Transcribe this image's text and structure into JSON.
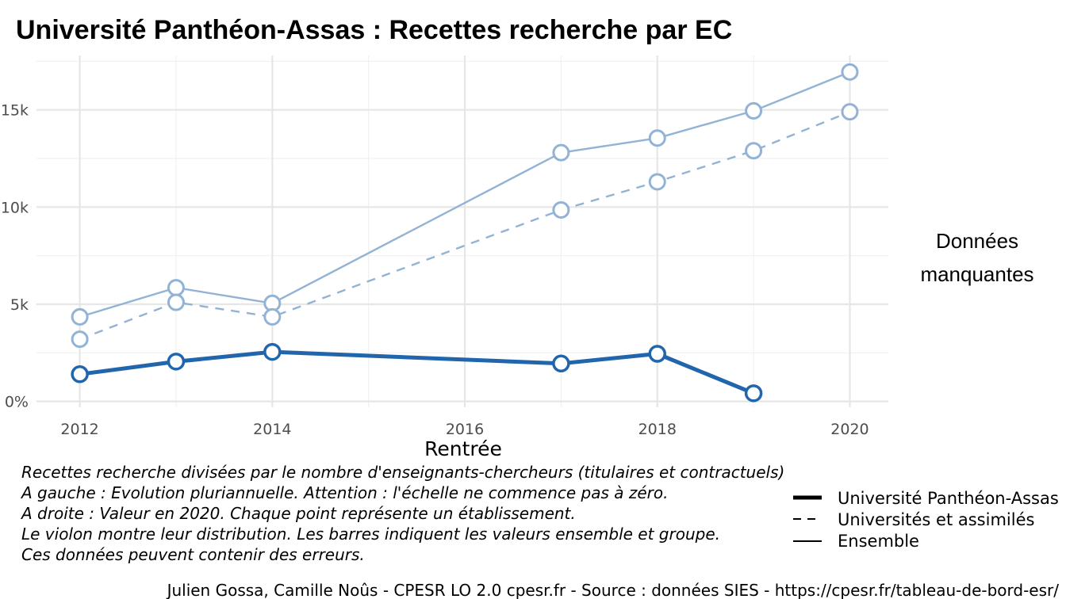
{
  "chart_data": {
    "type": "line",
    "title": "Université Panthéon-Assas  :  Recettes recherche par EC",
    "xlabel": "Rentrée",
    "ylabel": "",
    "xlim": [
      2011.55,
      2020.4
    ],
    "ylim": [
      -300,
      17800
    ],
    "x_ticks": [
      2012,
      2014,
      2016,
      2018,
      2020
    ],
    "x_tick_labels": [
      "2012",
      "2014",
      "2016",
      "2018",
      "2020"
    ],
    "y_ticks": [
      0,
      5000,
      10000,
      15000
    ],
    "y_tick_labels": [
      "0%",
      "5k",
      "10k",
      "15k"
    ],
    "x_minor": [
      2013,
      2015,
      2017,
      2019
    ],
    "y_minor": [
      2500,
      7500,
      12500,
      17500
    ],
    "grid": true,
    "legend_position": "bottom-right",
    "series": [
      {
        "name": "Université Panthéon-Assas",
        "style": "thick-solid",
        "color": "#2166ac",
        "x": [
          2012,
          2013,
          2014,
          2017,
          2018,
          2019
        ],
        "values": [
          1400,
          2050,
          2550,
          1950,
          2450,
          420
        ]
      },
      {
        "name": "Universités et assimilés",
        "style": "dashed",
        "color": "#92b3d5",
        "x": [
          2012,
          2013,
          2014,
          2017,
          2018,
          2019,
          2020
        ],
        "values": [
          3200,
          5100,
          4350,
          9850,
          11300,
          12900,
          14900
        ]
      },
      {
        "name": "Ensemble",
        "style": "solid",
        "color": "#92b3d5",
        "x": [
          2012,
          2013,
          2014,
          2017,
          2018,
          2019,
          2020
        ],
        "values": [
          4350,
          5850,
          5050,
          12800,
          13550,
          14950,
          16950
        ]
      }
    ],
    "side_text": [
      "Données",
      "manquantes"
    ],
    "caption_lines": [
      "Recettes recherche divisées par le nombre d'enseignants-chercheurs (titulaires et contractuels)",
      "A gauche : Evolution pluriannuelle. Attention : l'échelle ne commence pas à zéro.",
      "A droite : Valeur en 2020. Chaque point représente un établissement.",
      "Le violon montre leur distribution. Les barres indiquent les valeurs ensemble et groupe.",
      "Ces données peuvent contenir des erreurs."
    ],
    "credit": "Julien Gossa, Camille Noûs - CPESR LO 2.0 cpesr.fr - Source : données SIES - https://cpesr.fr/tableau-de-bord-esr/"
  }
}
